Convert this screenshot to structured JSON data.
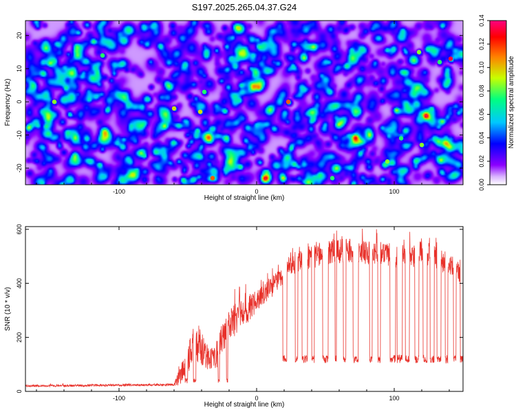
{
  "figure_title": "S197.2025.265.04.37.G24",
  "chart_data": [
    {
      "type": "heatmap",
      "title": "S197.2025.265.04.37.G24",
      "xlabel": "Height of straight line (km)",
      "ylabel": "Frequency (Hz)",
      "xlim": [
        -168,
        150
      ],
      "ylim": [
        -25,
        24.5
      ],
      "xticks": [
        -100,
        0,
        100
      ],
      "yticks": [
        -20,
        -10,
        0,
        10,
        20
      ],
      "colorbar": {
        "label": "Normalized spectral amplitude",
        "range": [
          0,
          0.14
        ],
        "ticks": [
          0.0,
          0.02,
          0.04,
          0.06,
          0.08,
          0.1,
          0.12,
          0.14
        ],
        "colors": [
          "#ffffff",
          "#8b00ff",
          "#0000ff",
          "#00c8ff",
          "#00ff80",
          "#c8ff00",
          "#ff8000",
          "#ff0000",
          "#ff0080"
        ]
      },
      "background_amplitude": [
        0.0,
        0.07
      ],
      "peaks": [
        {
          "x": 141,
          "freq": 13,
          "amplitude": 0.14
        },
        {
          "x": 23,
          "freq": 0,
          "amplitude": 0.12
        },
        {
          "x": -32,
          "freq": -23,
          "amplitude": 0.12
        },
        {
          "x": -60,
          "freq": -2,
          "amplitude": 0.1
        },
        {
          "x": -147,
          "freq": 0,
          "amplitude": 0.09
        },
        {
          "x": -41,
          "freq": -3,
          "amplitude": 0.1
        },
        {
          "x": 120,
          "freq": -13,
          "amplitude": 0.09
        },
        {
          "x": 95,
          "freq": -18,
          "amplitude": 0.09
        },
        {
          "x": 55,
          "freq": -23,
          "amplitude": 0.08
        },
        {
          "x": 118,
          "freq": 15,
          "amplitude": 0.09
        },
        {
          "x": 133,
          "freq": 12,
          "amplitude": 0.08
        },
        {
          "x": -112,
          "freq": 14,
          "amplitude": 0.08
        },
        {
          "x": 105,
          "freq": -11,
          "amplitude": 0.08
        },
        {
          "x": -38,
          "freq": 3,
          "amplitude": 0.08
        }
      ]
    },
    {
      "type": "line",
      "xlabel": "Height of straight line (km)",
      "ylabel": "SNR (10 * v/v)",
      "xlim": [
        -168,
        150
      ],
      "ylim": [
        0,
        610
      ],
      "xticks": [
        -100,
        0,
        100
      ],
      "yticks": [
        0,
        200,
        400,
        600
      ],
      "series": [
        {
          "name": "SNR",
          "color": "#e8312a",
          "envelope_x": [
            -168,
            -60,
            -55,
            -50,
            -45,
            -40,
            -35,
            -30,
            -25,
            -20,
            -15,
            -10,
            -5,
            0,
            5,
            10,
            15,
            19,
            20,
            25,
            30,
            40,
            50,
            60,
            70,
            80,
            90,
            100,
            110,
            120,
            130,
            140,
            145,
            150
          ],
          "envelope_y": [
            20,
            25,
            60,
            120,
            180,
            170,
            110,
            120,
            200,
            240,
            270,
            290,
            310,
            340,
            360,
            380,
            410,
            420,
            430,
            470,
            480,
            500,
            510,
            520,
            520,
            515,
            515,
            500,
            500,
            510,
            500,
            470,
            450,
            440
          ],
          "noise_amplitude": [
            4,
            4,
            40,
            60,
            70,
            70,
            50,
            50,
            60,
            60,
            60,
            55,
            50,
            45,
            40,
            40,
            35,
            30,
            25,
            40,
            40,
            45,
            45,
            45,
            45,
            45,
            45,
            45,
            45,
            45,
            45,
            45,
            45,
            45
          ],
          "dropout_level": 120,
          "dropout_intervals": [
            [
              19,
              22
            ],
            [
              28,
              30
            ],
            [
              33,
              37
            ],
            [
              40,
              42
            ],
            [
              48,
              52
            ],
            [
              57,
              58
            ],
            [
              63,
              65
            ],
            [
              70,
              74
            ],
            [
              82,
              84
            ],
            [
              88,
              90
            ],
            [
              97,
              101
            ],
            [
              102,
              106
            ],
            [
              108,
              111
            ],
            [
              115,
              118
            ],
            [
              121,
              124
            ],
            [
              126,
              129
            ],
            [
              131,
              134
            ],
            [
              137,
              139
            ],
            [
              143,
              145
            ],
            [
              148,
              150
            ]
          ],
          "gaps": [
            [
              -52,
              -50
            ],
            [
              -46,
              -44
            ],
            [
              -28,
              -27
            ],
            [
              -22,
              -21
            ]
          ]
        }
      ]
    }
  ]
}
